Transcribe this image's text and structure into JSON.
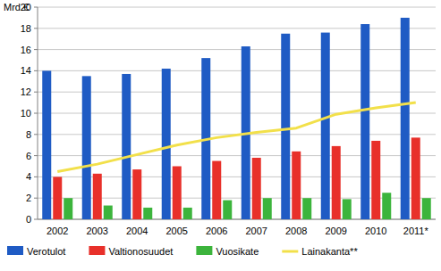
{
  "chart_data": {
    "type": "bar",
    "ylabel": "Mrd.€",
    "categories": [
      "2002",
      "2003",
      "2004",
      "2005",
      "2006",
      "2007",
      "2008",
      "2009",
      "2010",
      "2011*"
    ],
    "series": [
      {
        "name": "Verotulot",
        "type": "bar",
        "color": "#1f5bc4",
        "values": [
          14.0,
          13.5,
          13.7,
          14.2,
          15.2,
          16.3,
          17.5,
          17.6,
          18.4,
          19.0
        ]
      },
      {
        "name": "Valtionosuudet",
        "type": "bar",
        "color": "#e8302a",
        "values": [
          4.0,
          4.3,
          4.7,
          5.0,
          5.5,
          5.8,
          6.4,
          6.9,
          7.4,
          7.7
        ]
      },
      {
        "name": "Vuosikate",
        "type": "bar",
        "color": "#3cb43c",
        "values": [
          2.0,
          1.3,
          1.1,
          1.1,
          1.8,
          2.0,
          2.0,
          1.9,
          2.5,
          2.0
        ]
      },
      {
        "name": "Lainakanta**",
        "type": "line",
        "color": "#f2e04a",
        "values": [
          4.5,
          5.2,
          6.1,
          7.0,
          7.7,
          8.2,
          8.6,
          9.9,
          10.5,
          11.0
        ]
      }
    ],
    "ylim": [
      0,
      20
    ],
    "yticks": [
      0,
      2,
      4,
      6,
      8,
      10,
      12,
      14,
      16,
      18,
      20
    ],
    "grid": true,
    "legend": "bottom"
  }
}
